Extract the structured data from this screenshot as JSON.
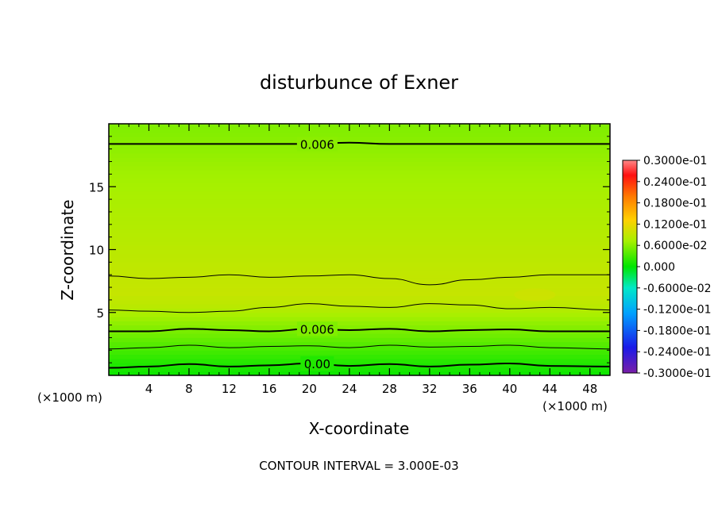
{
  "chart_data": {
    "type": "heatmap",
    "title": "disturbunce of Exner",
    "xlabel": "X-coordinate",
    "ylabel": "Z-coordinate",
    "x_unit_left": "(×1000 m)",
    "x_unit_right": "(×1000 m)",
    "xlim": [
      0,
      50
    ],
    "ylim": [
      0,
      20
    ],
    "x_ticks": [
      4,
      8,
      12,
      16,
      20,
      24,
      28,
      32,
      36,
      40,
      44,
      48
    ],
    "y_ticks": [
      5,
      10,
      15
    ],
    "contour_interval_text": "CONTOUR INTERVAL = 3.000E-03",
    "colorbar": {
      "min": -0.03,
      "max": 0.03,
      "labels": [
        "0.3000e-01",
        "0.2400e-01",
        "0.1800e-01",
        "0.1200e-01",
        "0.6000e-02",
        "0.000",
        "-0.6000e-02",
        "-0.1200e-01",
        "-0.1800e-01",
        "-0.2400e-01",
        "-0.3000e-01"
      ]
    },
    "field_profile": [
      {
        "z": 0.0,
        "value": 0.0005
      },
      {
        "z": 1.0,
        "value": 0.0015
      },
      {
        "z": 2.0,
        "value": 0.003
      },
      {
        "z": 3.0,
        "value": 0.0045
      },
      {
        "z": 4.0,
        "value": 0.006
      },
      {
        "z": 5.5,
        "value": 0.0085
      },
      {
        "z": 6.5,
        "value": 0.0093
      },
      {
        "z": 8.0,
        "value": 0.009
      },
      {
        "z": 10.0,
        "value": 0.0085
      },
      {
        "z": 12.0,
        "value": 0.008
      },
      {
        "z": 14.0,
        "value": 0.0075
      },
      {
        "z": 16.0,
        "value": 0.007
      },
      {
        "z": 18.5,
        "value": 0.006
      },
      {
        "z": 20.0,
        "value": 0.0055
      }
    ],
    "contours": [
      {
        "level": 0.0,
        "label": "0.00",
        "z": [
          0.6,
          0.7,
          0.9,
          0.7,
          0.8,
          0.95,
          0.75,
          0.9,
          0.7,
          0.85,
          0.95,
          0.75,
          0.7
        ]
      },
      {
        "level": 0.003,
        "label": "",
        "z": [
          2.1,
          2.2,
          2.4,
          2.2,
          2.3,
          2.35,
          2.2,
          2.4,
          2.25,
          2.3,
          2.4,
          2.2,
          2.1
        ]
      },
      {
        "level": 0.006,
        "label": "0.006",
        "z": [
          3.5,
          3.5,
          3.7,
          3.6,
          3.5,
          3.7,
          3.6,
          3.7,
          3.5,
          3.6,
          3.65,
          3.5,
          3.5
        ]
      },
      {
        "level": 0.009,
        "label": "",
        "z": [
          5.2,
          5.1,
          5.0,
          5.1,
          5.4,
          5.7,
          5.5,
          5.4,
          5.7,
          5.6,
          5.3,
          5.4,
          5.2
        ]
      },
      {
        "level": 0.009,
        "label": "",
        "z": [
          7.9,
          7.7,
          7.8,
          8.0,
          7.8,
          7.9,
          8.0,
          7.7,
          7.2,
          7.6,
          7.8,
          8.0,
          8.0
        ]
      },
      {
        "level": 0.006,
        "label": "0.006",
        "z": [
          18.4,
          18.4,
          18.4,
          18.4,
          18.4,
          18.4,
          18.5,
          18.4,
          18.4,
          18.4,
          18.4,
          18.4,
          18.4
        ]
      }
    ],
    "contour_x": [
      0,
      4,
      8,
      12,
      16,
      20,
      24,
      28,
      32,
      36,
      40,
      44,
      50
    ],
    "max_region": {
      "x": 42.5,
      "z": 6.4
    }
  }
}
